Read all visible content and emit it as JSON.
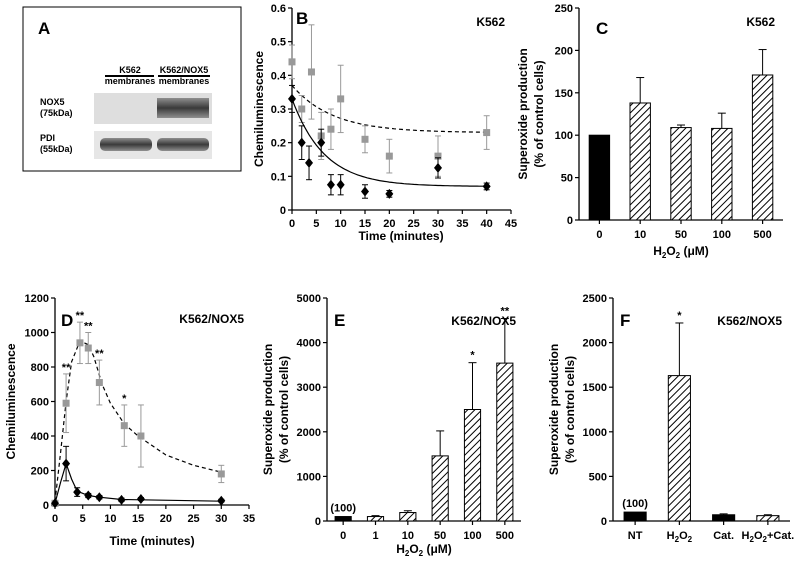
{
  "panels": {
    "A": {
      "letter": "A",
      "col1": [
        "K562",
        "membranes"
      ],
      "col2": [
        "K562/NOX5",
        "membranes"
      ],
      "row1": [
        "NOX5",
        "(75kDa)"
      ],
      "row2": [
        "PDI",
        "(55kDa)"
      ]
    }
  },
  "chart_data": [
    {
      "id": "B",
      "letter": "B",
      "tag": "K562",
      "type": "scatter",
      "xlabel": "Time (minutes)",
      "ylabel": "Chemiluminescence",
      "xlim": [
        0,
        45
      ],
      "ylim": [
        0,
        0.6
      ],
      "xticks": [
        0,
        5,
        10,
        15,
        20,
        25,
        30,
        35,
        40,
        45
      ],
      "yticks": [
        0,
        0.1,
        0.2,
        0.3,
        0.4,
        0.5,
        0.6
      ],
      "series": [
        {
          "color": "#999999",
          "marker": "square",
          "line": "dashed",
          "points": [
            {
              "x": 0,
              "y": 0.44,
              "e": 0.05
            },
            {
              "x": 2,
              "y": 0.3,
              "e": 0.04
            },
            {
              "x": 4,
              "y": 0.41,
              "e": 0.14
            },
            {
              "x": 6,
              "y": 0.22,
              "e": 0.07
            },
            {
              "x": 8,
              "y": 0.24,
              "e": 0.06
            },
            {
              "x": 10,
              "y": 0.33,
              "e": 0.1
            },
            {
              "x": 15,
              "y": 0.21,
              "e": 0.04
            },
            {
              "x": 20,
              "y": 0.16,
              "e": 0.05
            },
            {
              "x": 30,
              "y": 0.16,
              "e": 0.06
            },
            {
              "x": 40,
              "y": 0.23,
              "e": 0.05
            }
          ],
          "fit": {
            "a": 0.14,
            "b": 0.23,
            "k": 0.12
          }
        },
        {
          "color": "#000000",
          "marker": "diamond",
          "line": "solid",
          "points": [
            {
              "x": 0,
              "y": 0.33,
              "e": 0.04
            },
            {
              "x": 2,
              "y": 0.2,
              "e": 0.05
            },
            {
              "x": 3.5,
              "y": 0.14,
              "e": 0.05
            },
            {
              "x": 6,
              "y": 0.2,
              "e": 0.04
            },
            {
              "x": 8,
              "y": 0.075,
              "e": 0.03
            },
            {
              "x": 10,
              "y": 0.075,
              "e": 0.03
            },
            {
              "x": 15,
              "y": 0.055,
              "e": 0.02
            },
            {
              "x": 20,
              "y": 0.048,
              "e": 0.01
            },
            {
              "x": 30,
              "y": 0.125,
              "e": 0.03
            },
            {
              "x": 40,
              "y": 0.07,
              "e": 0.01
            }
          ],
          "fit": {
            "a": 0.26,
            "b": 0.07,
            "k": 0.15
          }
        }
      ]
    },
    {
      "id": "C",
      "letter": "C",
      "tag": "K562",
      "type": "bar",
      "xlabel": "H2O2 (μM)",
      "ylabel": [
        "Superoxide production",
        "(% of control cells)"
      ],
      "ylim": [
        0,
        250
      ],
      "yticks": [
        0,
        50,
        100,
        150,
        200,
        250
      ],
      "categories": [
        "0",
        "10",
        "50",
        "100",
        "500"
      ],
      "values": [
        100,
        138,
        109,
        108,
        171
      ],
      "errors": [
        0,
        30,
        3,
        18,
        30
      ],
      "fills": [
        "solid",
        "hatch",
        "hatch",
        "hatch",
        "hatch"
      ]
    },
    {
      "id": "D",
      "letter": "D",
      "tag": "K562/NOX5",
      "type": "line",
      "xlabel": "Time (minutes)",
      "ylabel": "Chemiluminescence",
      "xlim": [
        0,
        35
      ],
      "ylim": [
        0,
        1200
      ],
      "xticks": [
        0,
        5,
        10,
        15,
        20,
        25,
        30,
        35
      ],
      "yticks": [
        0,
        200,
        400,
        600,
        800,
        1000,
        1200
      ],
      "series": [
        {
          "color": "#999999",
          "marker": "square",
          "line": "dashed",
          "points": [
            {
              "x": 0,
              "y": 10,
              "e": 0
            },
            {
              "x": 2,
              "y": 590,
              "e": 170
            },
            {
              "x": 4.5,
              "y": 940,
              "e": 120
            },
            {
              "x": 6,
              "y": 910,
              "e": 90
            },
            {
              "x": 8,
              "y": 710,
              "e": 130
            },
            {
              "x": 12.5,
              "y": 460,
              "e": 120
            },
            {
              "x": 15.5,
              "y": 400,
              "e": 180
            },
            {
              "x": 30,
              "y": 180,
              "e": 50
            }
          ],
          "curve": [
            [
              0,
              20
            ],
            [
              1,
              300
            ],
            [
              2,
              600
            ],
            [
              3,
              830
            ],
            [
              4.5,
              950
            ],
            [
              6,
              930
            ],
            [
              7,
              860
            ],
            [
              8.5,
              700
            ],
            [
              10,
              590
            ],
            [
              12.5,
              470
            ],
            [
              15,
              400
            ],
            [
              20,
              290
            ],
            [
              25,
              230
            ],
            [
              30,
              190
            ]
          ],
          "annotations": [
            {
              "x": 2,
              "text": "**"
            },
            {
              "x": 4.5,
              "text": "**"
            },
            {
              "x": 6,
              "text": "**"
            },
            {
              "x": 8,
              "text": "**"
            },
            {
              "x": 12.5,
              "text": "*"
            }
          ]
        },
        {
          "color": "#000000",
          "marker": "diamond",
          "line": "solid",
          "points": [
            {
              "x": 0,
              "y": 10,
              "e": 0
            },
            {
              "x": 2,
              "y": 240,
              "e": 100
            },
            {
              "x": 4,
              "y": 75,
              "e": 25
            },
            {
              "x": 6,
              "y": 55,
              "e": 12
            },
            {
              "x": 8,
              "y": 45,
              "e": 10
            },
            {
              "x": 12,
              "y": 30,
              "e": 10
            },
            {
              "x": 15.5,
              "y": 35,
              "e": 8
            },
            {
              "x": 30,
              "y": 25,
              "e": 8
            }
          ],
          "curve": [
            [
              0,
              10
            ],
            [
              1,
              130
            ],
            [
              2,
              240
            ],
            [
              3,
              150
            ],
            [
              4,
              80
            ],
            [
              6,
              55
            ],
            [
              8,
              45
            ],
            [
              12,
              32
            ],
            [
              15.5,
              30
            ],
            [
              30,
              22
            ]
          ]
        }
      ]
    },
    {
      "id": "E",
      "letter": "E",
      "tag": "K562/NOX5",
      "type": "bar",
      "xlabel": "H2O2 (μM)",
      "ylabel": [
        "Superoxide production",
        "(% of control cells)"
      ],
      "ylim": [
        0,
        5000
      ],
      "yticks": [
        0,
        1000,
        2000,
        3000,
        4000,
        5000
      ],
      "categories": [
        "0",
        "1",
        "10",
        "50",
        "100",
        "500"
      ],
      "values": [
        100,
        100,
        190,
        1460,
        2500,
        3540
      ],
      "errors": [
        0,
        20,
        40,
        560,
        1050,
        1000
      ],
      "fills": [
        "solid",
        "hatch",
        "hatch",
        "hatch",
        "hatch",
        "hatch"
      ],
      "bar_notes": [
        "(100)",
        "",
        "",
        "",
        "*",
        "**"
      ]
    },
    {
      "id": "F",
      "letter": "F",
      "tag": "K562/NOX5",
      "type": "bar",
      "xlabel": "",
      "ylabel": [
        "Superoxide production",
        "(% of control cells)"
      ],
      "ylim": [
        0,
        2500
      ],
      "yticks": [
        0,
        500,
        1000,
        1500,
        2000,
        2500
      ],
      "categories": [
        "NT",
        "H2O2",
        "Cat.",
        "H2O2+Cat."
      ],
      "values": [
        100,
        1630,
        70,
        60
      ],
      "errors": [
        0,
        590,
        10,
        10
      ],
      "fills": [
        "solid",
        "hatch",
        "solid",
        "hatch"
      ],
      "bar_notes": [
        "(100)",
        "*",
        "",
        ""
      ]
    }
  ]
}
